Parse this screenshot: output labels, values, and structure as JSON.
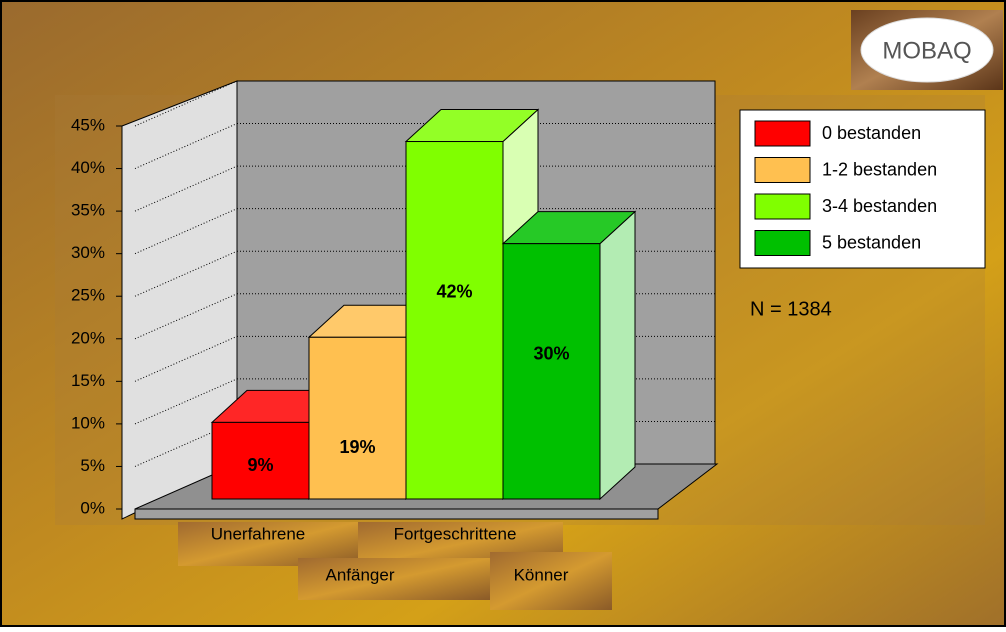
{
  "chart_data": {
    "type": "bar3d",
    "categories": [
      "0 bestanden",
      "1-2 bestanden",
      "3-4 bestanden",
      "5 bestanden"
    ],
    "values": [
      9,
      19,
      42,
      30
    ],
    "value_labels": [
      "9%",
      "19%",
      "42%",
      "30%"
    ],
    "colors": [
      "#ff0000",
      "#ffc050",
      "#80ff00",
      "#00c000"
    ],
    "ylim": [
      0,
      45
    ],
    "yticks": [
      {
        "value": 0,
        "label": "0%"
      },
      {
        "value": 5,
        "label": "5%"
      },
      {
        "value": 10,
        "label": "10%"
      },
      {
        "value": 15,
        "label": "15%"
      },
      {
        "value": 20,
        "label": "20%"
      },
      {
        "value": 25,
        "label": "25%"
      },
      {
        "value": 30,
        "label": "30%"
      },
      {
        "value": 35,
        "label": "35%"
      },
      {
        "value": 40,
        "label": "40%"
      },
      {
        "value": 45,
        "label": "45%"
      }
    ],
    "grid": true,
    "legend": "right",
    "x_labels": [
      "Unerfahrene",
      "Fortgeschrittene",
      "Anfänger",
      "Könner"
    ],
    "annotation": "N = 1384",
    "logo": "MOBAQ"
  }
}
